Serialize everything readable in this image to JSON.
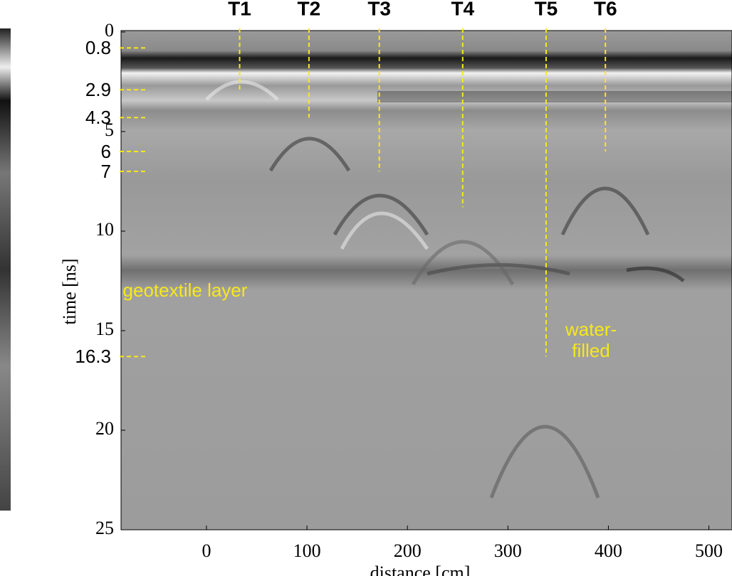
{
  "chart_data": {
    "type": "radargram",
    "y_label": "time [ns]",
    "x_label": "distance [cm]",
    "xlim": [
      -85,
      523
    ],
    "ylim": [
      0,
      25
    ],
    "y_inverted": true,
    "xticks": [
      0,
      100,
      200,
      300,
      400,
      500
    ],
    "yticks": [
      0,
      5,
      10,
      15,
      20,
      25
    ],
    "marker_color": "#f7e81a",
    "depth_markers": [
      0.8,
      2.9,
      4.3,
      6,
      7,
      16.3
    ],
    "targets": [
      {
        "name": "T1",
        "x": 33,
        "depth": 2.9
      },
      {
        "name": "T2",
        "x": 102,
        "depth": 4.3
      },
      {
        "name": "T3",
        "x": 172,
        "depth": 7
      },
      {
        "name": "T4",
        "x": 255,
        "depth": 8.8
      },
      {
        "name": "T5",
        "x": 338,
        "depth": 16.3
      },
      {
        "name": "T6",
        "x": 397,
        "depth": 6
      }
    ],
    "annotations": [
      "geotextile layer",
      "water-filled"
    ]
  }
}
